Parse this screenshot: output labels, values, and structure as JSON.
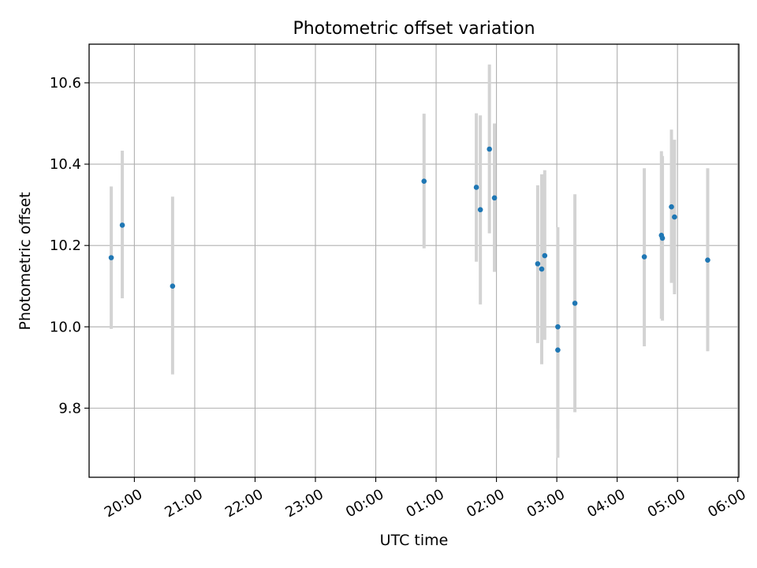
{
  "chart_data": {
    "type": "scatter",
    "title": "Photometric offset variation",
    "xlabel": "UTC time",
    "ylabel": "Photometric offset",
    "x_axis_type": "time",
    "xlim": [
      "19:15",
      "06:01"
    ],
    "ylim": [
      9.63,
      10.695
    ],
    "x_ticks": [
      "20:00",
      "21:00",
      "22:00",
      "23:00",
      "00:00",
      "01:00",
      "02:00",
      "03:00",
      "04:00",
      "05:00",
      "06:00"
    ],
    "y_ticks": [
      "9.8",
      "10.0",
      "10.2",
      "10.4",
      "10.6"
    ],
    "grid": true,
    "marker_color": "#1f77b4",
    "errorbar_color": "#d3d3d3",
    "points": [
      {
        "t": "19:37",
        "y": 10.17,
        "lo": 9.995,
        "hi": 10.345
      },
      {
        "t": "19:48",
        "y": 10.25,
        "lo": 10.07,
        "hi": 10.433
      },
      {
        "t": "20:38",
        "y": 10.1,
        "lo": 9.883,
        "hi": 10.32
      },
      {
        "t": "00:48",
        "y": 10.358,
        "lo": 10.193,
        "hi": 10.524
      },
      {
        "t": "01:40",
        "y": 10.343,
        "lo": 10.16,
        "hi": 10.525
      },
      {
        "t": "01:44",
        "y": 10.288,
        "lo": 10.055,
        "hi": 10.52
      },
      {
        "t": "01:53",
        "y": 10.437,
        "lo": 10.23,
        "hi": 10.645
      },
      {
        "t": "01:58",
        "y": 10.317,
        "lo": 10.135,
        "hi": 10.5
      },
      {
        "t": "02:41",
        "y": 10.155,
        "lo": 9.96,
        "hi": 10.348
      },
      {
        "t": "02:45",
        "y": 10.142,
        "lo": 9.908,
        "hi": 10.375
      },
      {
        "t": "02:48",
        "y": 10.175,
        "lo": 9.968,
        "hi": 10.385
      },
      {
        "t": "03:01",
        "y": 10.0,
        "lo": 9.75,
        "hi": 10.245
      },
      {
        "t": "03:01",
        "y": 9.943,
        "lo": 9.678,
        "hi": 10.2
      },
      {
        "t": "03:18",
        "y": 10.058,
        "lo": 9.79,
        "hi": 10.326
      },
      {
        "t": "04:27",
        "y": 10.172,
        "lo": 9.952,
        "hi": 10.39
      },
      {
        "t": "04:44",
        "y": 10.225,
        "lo": 10.02,
        "hi": 10.432
      },
      {
        "t": "04:45",
        "y": 10.218,
        "lo": 10.015,
        "hi": 10.42
      },
      {
        "t": "04:54",
        "y": 10.295,
        "lo": 10.108,
        "hi": 10.485
      },
      {
        "t": "04:57",
        "y": 10.27,
        "lo": 10.08,
        "hi": 10.46
      },
      {
        "t": "05:30",
        "y": 10.164,
        "lo": 9.94,
        "hi": 10.39
      }
    ]
  }
}
